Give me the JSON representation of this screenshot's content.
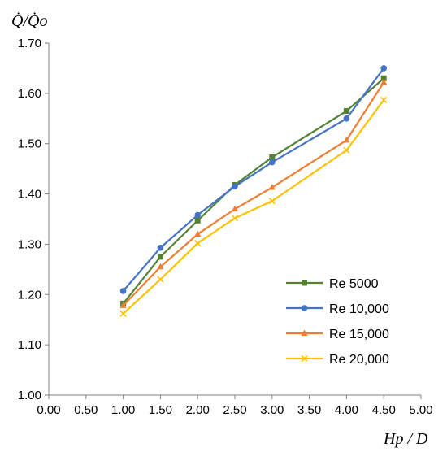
{
  "chart_data": {
    "type": "line",
    "title": "",
    "ylabel": "Q̇/Q̇o",
    "xlabel": "Hp / D",
    "xlim": [
      0,
      5
    ],
    "ylim": [
      1.0,
      1.7
    ],
    "x_ticks": [
      "0.00",
      "0.50",
      "1.00",
      "1.50",
      "2.00",
      "2.50",
      "3.00",
      "3.50",
      "4.00",
      "4.50",
      "5.00"
    ],
    "y_ticks": [
      "1.00",
      "1.10",
      "1.20",
      "1.30",
      "1.40",
      "1.50",
      "1.60",
      "1.70"
    ],
    "grid": false,
    "legend_position": "bottom-right",
    "x": [
      1.0,
      1.5,
      2.0,
      2.5,
      3.0,
      4.0,
      4.5
    ],
    "series": [
      {
        "name": "Re 5000",
        "color": "#548235",
        "marker": "square",
        "values": [
          1.182,
          1.275,
          1.347,
          1.418,
          1.473,
          1.565,
          1.63
        ]
      },
      {
        "name": "Re 10,000",
        "color": "#4472C4",
        "marker": "circle",
        "values": [
          1.207,
          1.293,
          1.358,
          1.415,
          1.463,
          1.55,
          1.65
        ]
      },
      {
        "name": "Re 15,000",
        "color": "#ED7D31",
        "marker": "triangle",
        "values": [
          1.178,
          1.255,
          1.32,
          1.37,
          1.413,
          1.507,
          1.622
        ]
      },
      {
        "name": "Re 20,000",
        "color": "#FFC000",
        "marker": "x",
        "values": [
          1.162,
          1.23,
          1.302,
          1.352,
          1.386,
          1.487,
          1.587
        ]
      }
    ]
  }
}
